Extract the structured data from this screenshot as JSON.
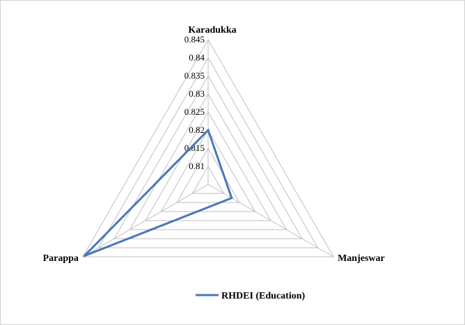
{
  "chart_data": {
    "type": "radar",
    "categories": [
      "Karadukka",
      "Manjeswar",
      "Parappa"
    ],
    "series": [
      {
        "name": "RHDEI (Education)",
        "values": [
          0.82,
          0.8125,
          0.8445
        ]
      }
    ],
    "rlim": [
      0.805,
      0.845
    ],
    "ticks": [
      "0.81",
      "0.815",
      "0.82",
      "0.825",
      "0.83",
      "0.835",
      "0.84",
      "0.845"
    ],
    "grid": true,
    "legend_position": "bottom",
    "colors": {
      "series": "#4a78b5",
      "grid": "#bfbfbf"
    }
  }
}
